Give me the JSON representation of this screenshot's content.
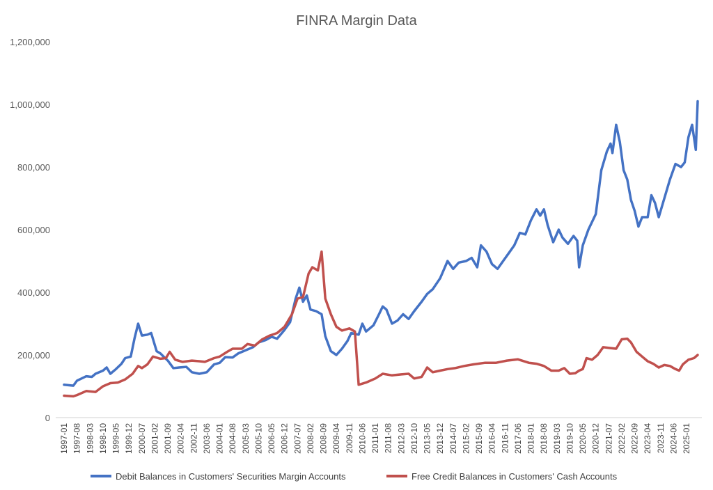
{
  "chart_data": {
    "type": "line",
    "title": "FINRA Margin Data",
    "xlabel": "",
    "ylabel": "",
    "ylim": [
      0,
      1200000
    ],
    "yticks": [
      0,
      200000,
      400000,
      600000,
      800000,
      1000000,
      1200000
    ],
    "ytick_labels": [
      "0",
      "200,000",
      "400,000",
      "600,000",
      "800,000",
      "1,000,000",
      "1,200,000"
    ],
    "x_start": "1997-01",
    "x_end": "2025-07",
    "xtick_labels": [
      "1997-01",
      "1997-08",
      "1998-03",
      "1998-10",
      "1999-05",
      "1999-12",
      "2000-07",
      "2001-02",
      "2001-09",
      "2002-04",
      "2002-11",
      "2003-06",
      "2004-01",
      "2004-08",
      "2005-03",
      "2005-10",
      "2006-05",
      "2006-12",
      "2007-07",
      "2008-02",
      "2008-09",
      "2009-04",
      "2009-11",
      "2010-06",
      "2011-01",
      "2011-08",
      "2012-03",
      "2012-10",
      "2013-05",
      "2013-12",
      "2014-07",
      "2015-02",
      "2015-09",
      "2016-04",
      "2016-11",
      "2017-06",
      "2018-01",
      "2018-08",
      "2019-03",
      "2019-10",
      "2020-05",
      "2020-12",
      "2021-07",
      "2022-02",
      "2022-09",
      "2023-04",
      "2023-11",
      "2024-06",
      "2025-01"
    ],
    "grid": false,
    "legend_position": "bottom",
    "series": [
      {
        "name": "Debit Balances in Customers' Securities Margin Accounts",
        "color": "#4472c4",
        "points": [
          [
            "1997-01",
            105000
          ],
          [
            "1997-06",
            102000
          ],
          [
            "1997-08",
            118000
          ],
          [
            "1998-01",
            132000
          ],
          [
            "1998-04",
            130000
          ],
          [
            "1998-06",
            140000
          ],
          [
            "1998-10",
            150000
          ],
          [
            "1998-12",
            160000
          ],
          [
            "1999-02",
            140000
          ],
          [
            "1999-05",
            155000
          ],
          [
            "1999-08",
            172000
          ],
          [
            "1999-10",
            190000
          ],
          [
            "2000-01",
            195000
          ],
          [
            "2000-03",
            252000
          ],
          [
            "2000-05",
            300000
          ],
          [
            "2000-07",
            262000
          ],
          [
            "2000-10",
            265000
          ],
          [
            "2000-12",
            270000
          ],
          [
            "2001-03",
            212000
          ],
          [
            "2001-05",
            205000
          ],
          [
            "2001-07",
            193000
          ],
          [
            "2001-09",
            182000
          ],
          [
            "2001-12",
            158000
          ],
          [
            "2002-03",
            160000
          ],
          [
            "2002-07",
            162000
          ],
          [
            "2002-10",
            145000
          ],
          [
            "2003-02",
            140000
          ],
          [
            "2003-06",
            145000
          ],
          [
            "2003-10",
            170000
          ],
          [
            "2004-01",
            175000
          ],
          [
            "2004-04",
            193000
          ],
          [
            "2004-08",
            192000
          ],
          [
            "2004-11",
            205000
          ],
          [
            "2005-03",
            215000
          ],
          [
            "2005-07",
            225000
          ],
          [
            "2005-10",
            240000
          ],
          [
            "2006-02",
            248000
          ],
          [
            "2006-05",
            258000
          ],
          [
            "2006-08",
            252000
          ],
          [
            "2006-12",
            280000
          ],
          [
            "2007-03",
            305000
          ],
          [
            "2007-06",
            380000
          ],
          [
            "2007-08",
            415000
          ],
          [
            "2007-10",
            370000
          ],
          [
            "2007-12",
            390000
          ],
          [
            "2008-02",
            345000
          ],
          [
            "2008-05",
            340000
          ],
          [
            "2008-08",
            330000
          ],
          [
            "2008-10",
            260000
          ],
          [
            "2009-01",
            212000
          ],
          [
            "2009-04",
            200000
          ],
          [
            "2009-07",
            220000
          ],
          [
            "2009-10",
            245000
          ],
          [
            "2009-12",
            270000
          ],
          [
            "2010-04",
            265000
          ],
          [
            "2010-06",
            300000
          ],
          [
            "2010-08",
            275000
          ],
          [
            "2010-12",
            295000
          ],
          [
            "2011-03",
            330000
          ],
          [
            "2011-05",
            355000
          ],
          [
            "2011-07",
            345000
          ],
          [
            "2011-10",
            300000
          ],
          [
            "2012-01",
            310000
          ],
          [
            "2012-04",
            330000
          ],
          [
            "2012-07",
            315000
          ],
          [
            "2012-10",
            340000
          ],
          [
            "2013-02",
            370000
          ],
          [
            "2013-05",
            395000
          ],
          [
            "2013-08",
            410000
          ],
          [
            "2013-12",
            445000
          ],
          [
            "2014-04",
            500000
          ],
          [
            "2014-07",
            475000
          ],
          [
            "2014-10",
            495000
          ],
          [
            "2015-02",
            500000
          ],
          [
            "2015-05",
            510000
          ],
          [
            "2015-08",
            480000
          ],
          [
            "2015-10",
            550000
          ],
          [
            "2016-01",
            530000
          ],
          [
            "2016-04",
            490000
          ],
          [
            "2016-07",
            475000
          ],
          [
            "2016-10",
            500000
          ],
          [
            "2017-01",
            525000
          ],
          [
            "2017-04",
            550000
          ],
          [
            "2017-07",
            590000
          ],
          [
            "2017-10",
            585000
          ],
          [
            "2018-01",
            630000
          ],
          [
            "2018-04",
            665000
          ],
          [
            "2018-06",
            645000
          ],
          [
            "2018-08",
            665000
          ],
          [
            "2018-10",
            615000
          ],
          [
            "2019-01",
            560000
          ],
          [
            "2019-04",
            600000
          ],
          [
            "2019-06",
            575000
          ],
          [
            "2019-09",
            555000
          ],
          [
            "2019-12",
            580000
          ],
          [
            "2020-02",
            565000
          ],
          [
            "2020-03",
            480000
          ],
          [
            "2020-05",
            550000
          ],
          [
            "2020-08",
            600000
          ],
          [
            "2020-12",
            650000
          ],
          [
            "2021-03",
            790000
          ],
          [
            "2021-06",
            850000
          ],
          [
            "2021-08",
            875000
          ],
          [
            "2021-09",
            845000
          ],
          [
            "2021-11",
            935000
          ],
          [
            "2022-01",
            880000
          ],
          [
            "2022-03",
            790000
          ],
          [
            "2022-05",
            760000
          ],
          [
            "2022-07",
            695000
          ],
          [
            "2022-09",
            660000
          ],
          [
            "2022-11",
            610000
          ],
          [
            "2023-01",
            640000
          ],
          [
            "2023-04",
            640000
          ],
          [
            "2023-06",
            710000
          ],
          [
            "2023-08",
            685000
          ],
          [
            "2023-10",
            640000
          ],
          [
            "2024-01",
            700000
          ],
          [
            "2024-04",
            760000
          ],
          [
            "2024-07",
            810000
          ],
          [
            "2024-10",
            800000
          ],
          [
            "2024-12",
            815000
          ],
          [
            "2025-02",
            895000
          ],
          [
            "2025-04",
            935000
          ],
          [
            "2025-06",
            855000
          ],
          [
            "2025-07",
            1010000
          ]
        ]
      },
      {
        "name": "Free Credit Balances in Customers' Cash Accounts",
        "color": "#c0504d",
        "points": [
          [
            "1997-01",
            70000
          ],
          [
            "1997-06",
            68000
          ],
          [
            "1997-08",
            72000
          ],
          [
            "1998-01",
            85000
          ],
          [
            "1998-06",
            82000
          ],
          [
            "1998-10",
            100000
          ],
          [
            "1999-02",
            110000
          ],
          [
            "1999-06",
            112000
          ],
          [
            "1999-10",
            122000
          ],
          [
            "2000-02",
            140000
          ],
          [
            "2000-05",
            165000
          ],
          [
            "2000-07",
            158000
          ],
          [
            "2000-10",
            170000
          ],
          [
            "2001-01",
            195000
          ],
          [
            "2001-05",
            188000
          ],
          [
            "2001-08",
            190000
          ],
          [
            "2001-10",
            210000
          ],
          [
            "2002-01",
            185000
          ],
          [
            "2002-05",
            178000
          ],
          [
            "2002-10",
            182000
          ],
          [
            "2003-02",
            180000
          ],
          [
            "2003-05",
            178000
          ],
          [
            "2003-10",
            190000
          ],
          [
            "2004-01",
            195000
          ],
          [
            "2004-05",
            210000
          ],
          [
            "2004-08",
            220000
          ],
          [
            "2005-01",
            220000
          ],
          [
            "2005-04",
            235000
          ],
          [
            "2005-08",
            230000
          ],
          [
            "2005-12",
            250000
          ],
          [
            "2006-04",
            262000
          ],
          [
            "2006-08",
            270000
          ],
          [
            "2006-12",
            290000
          ],
          [
            "2007-04",
            330000
          ],
          [
            "2007-07",
            380000
          ],
          [
            "2007-10",
            385000
          ],
          [
            "2008-01",
            460000
          ],
          [
            "2008-03",
            480000
          ],
          [
            "2008-06",
            470000
          ],
          [
            "2008-08",
            530000
          ],
          [
            "2008-10",
            380000
          ],
          [
            "2009-01",
            330000
          ],
          [
            "2009-04",
            290000
          ],
          [
            "2009-07",
            278000
          ],
          [
            "2009-11",
            285000
          ],
          [
            "2010-02",
            275000
          ],
          [
            "2010-04",
            105000
          ],
          [
            "2010-08",
            112000
          ],
          [
            "2011-01",
            125000
          ],
          [
            "2011-05",
            140000
          ],
          [
            "2011-10",
            135000
          ],
          [
            "2012-03",
            138000
          ],
          [
            "2012-07",
            140000
          ],
          [
            "2012-10",
            125000
          ],
          [
            "2013-02",
            130000
          ],
          [
            "2013-05",
            160000
          ],
          [
            "2013-08",
            145000
          ],
          [
            "2013-12",
            150000
          ],
          [
            "2014-04",
            155000
          ],
          [
            "2014-08",
            158000
          ],
          [
            "2015-01",
            165000
          ],
          [
            "2015-06",
            170000
          ],
          [
            "2015-12",
            175000
          ],
          [
            "2016-06",
            175000
          ],
          [
            "2016-12",
            182000
          ],
          [
            "2017-06",
            186000
          ],
          [
            "2017-12",
            175000
          ],
          [
            "2018-04",
            172000
          ],
          [
            "2018-08",
            165000
          ],
          [
            "2018-12",
            150000
          ],
          [
            "2019-04",
            150000
          ],
          [
            "2019-07",
            158000
          ],
          [
            "2019-10",
            140000
          ],
          [
            "2020-01",
            142000
          ],
          [
            "2020-03",
            150000
          ],
          [
            "2020-05",
            155000
          ],
          [
            "2020-07",
            190000
          ],
          [
            "2020-10",
            185000
          ],
          [
            "2021-01",
            200000
          ],
          [
            "2021-04",
            225000
          ],
          [
            "2021-08",
            222000
          ],
          [
            "2021-11",
            220000
          ],
          [
            "2022-02",
            250000
          ],
          [
            "2022-05",
            252000
          ],
          [
            "2022-07",
            240000
          ],
          [
            "2022-10",
            210000
          ],
          [
            "2023-01",
            195000
          ],
          [
            "2023-04",
            180000
          ],
          [
            "2023-07",
            172000
          ],
          [
            "2023-10",
            160000
          ],
          [
            "2024-01",
            168000
          ],
          [
            "2024-04",
            165000
          ],
          [
            "2024-07",
            155000
          ],
          [
            "2024-09",
            150000
          ],
          [
            "2024-11",
            170000
          ],
          [
            "2025-02",
            185000
          ],
          [
            "2025-05",
            190000
          ],
          [
            "2025-07",
            200000
          ]
        ]
      }
    ]
  }
}
